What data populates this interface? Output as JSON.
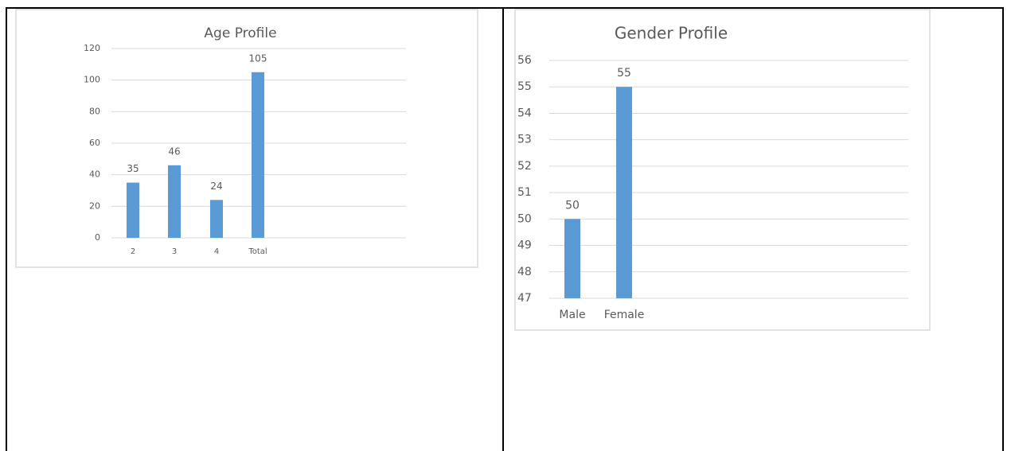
{
  "chart_data": [
    {
      "type": "bar",
      "title": "Age Profile",
      "categories": [
        "2",
        "3",
        "4",
        "Total"
      ],
      "values": [
        35,
        46,
        24,
        105
      ],
      "color": "#5b9bd5",
      "ylim": [
        0,
        120
      ],
      "yticks": [
        0,
        20,
        40,
        60,
        80,
        100,
        120
      ],
      "grid": true
    },
    {
      "type": "bar",
      "title": "Gender Profile",
      "categories": [
        "Male",
        "Female"
      ],
      "values": [
        50,
        55
      ],
      "color": "#5b9bd5",
      "ylim": [
        47,
        56
      ],
      "yticks": [
        47,
        48,
        49,
        50,
        51,
        52,
        53,
        54,
        55,
        56
      ],
      "grid": true
    }
  ]
}
